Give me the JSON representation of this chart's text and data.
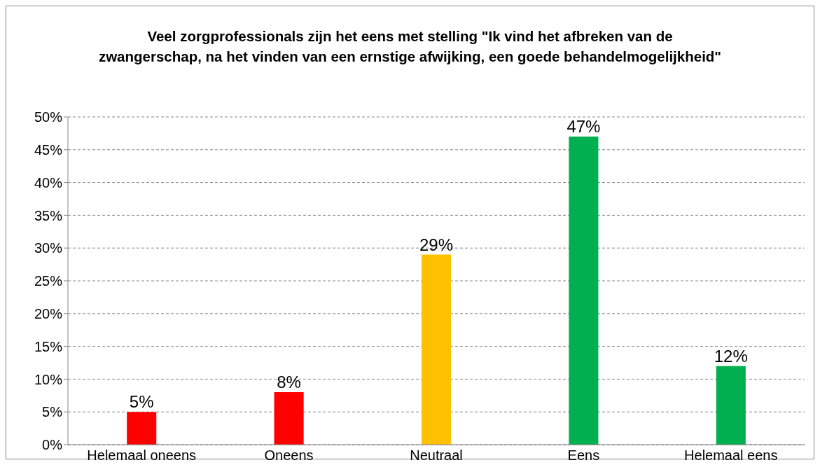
{
  "chart_data": {
    "type": "bar",
    "title": "Veel zorgprofessionals zijn het eens met stelling \"Ik vind het afbreken van de zwangerschap, na het vinden van een ernstige afwijking, een goede behandelmogelijkheid\"",
    "categories": [
      "Helemaal oneens",
      "Oneens",
      "Neutraal",
      "Eens",
      "Helemaal eens"
    ],
    "values": [
      5,
      8,
      29,
      47,
      12
    ],
    "colors": [
      "#ff0000",
      "#ff0000",
      "#ffc000",
      "#00b050",
      "#00b050"
    ],
    "value_labels": [
      "5%",
      "8%",
      "29%",
      "47%",
      "12%"
    ],
    "ylim": [
      0,
      50
    ],
    "yticks": [
      {
        "value": 0,
        "label": "0%"
      },
      {
        "value": 5,
        "label": "5%"
      },
      {
        "value": 10,
        "label": "10%"
      },
      {
        "value": 15,
        "label": "15%"
      },
      {
        "value": 20,
        "label": "20%"
      },
      {
        "value": 25,
        "label": "25%"
      },
      {
        "value": 30,
        "label": "30%"
      },
      {
        "value": 35,
        "label": "35%"
      },
      {
        "value": 40,
        "label": "40%"
      },
      {
        "value": 45,
        "label": "45%"
      },
      {
        "value": 50,
        "label": "50%"
      }
    ],
    "grid": "y",
    "legend": false
  }
}
